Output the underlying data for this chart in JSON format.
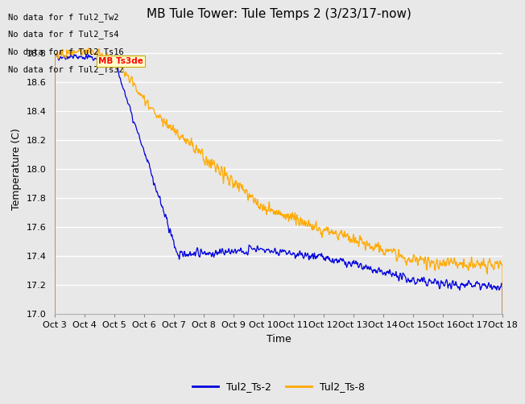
{
  "title": "MB Tule Tower: Tule Temps 2 (3/23/17-now)",
  "xlabel": "Time",
  "ylabel": "Temperature (C)",
  "ylim": [
    17.0,
    19.0
  ],
  "xlim": [
    0,
    15
  ],
  "x_tick_labels": [
    "Oct 3",
    "Oct 4",
    "Oct 5",
    "Oct 6",
    "Oct 7",
    "Oct 8",
    "Oct 9",
    "Oct 10",
    "Oct 11",
    "Oct 12",
    "Oct 13",
    "Oct 14",
    "Oct 15",
    "Oct 16",
    "Oct 17",
    "Oct 18"
  ],
  "no_data_lines": [
    "No data for f Tul2_Tw2",
    "No data for f Tul2_Ts4",
    "No data for f Tul2_Ts16",
    "No data for f Tul2_Ts32"
  ],
  "tooltip_text": "MB Ts3de",
  "legend": [
    {
      "label": "Tul2_Ts-2",
      "color": "#0000dd",
      "linestyle": "-"
    },
    {
      "label": "Tul2_Ts-8",
      "color": "#ffaa00",
      "linestyle": "-"
    }
  ],
  "background_color": "#e8e8e8",
  "plot_bg_color": "#e8e8e8",
  "grid_color": "#ffffff",
  "title_fontsize": 11,
  "axis_fontsize": 9,
  "tick_fontsize": 8,
  "nodata_fontsize": 7.5,
  "y_ticks": [
    17.0,
    17.2,
    17.4,
    17.6,
    17.8,
    18.0,
    18.2,
    18.4,
    18.6,
    18.8
  ]
}
